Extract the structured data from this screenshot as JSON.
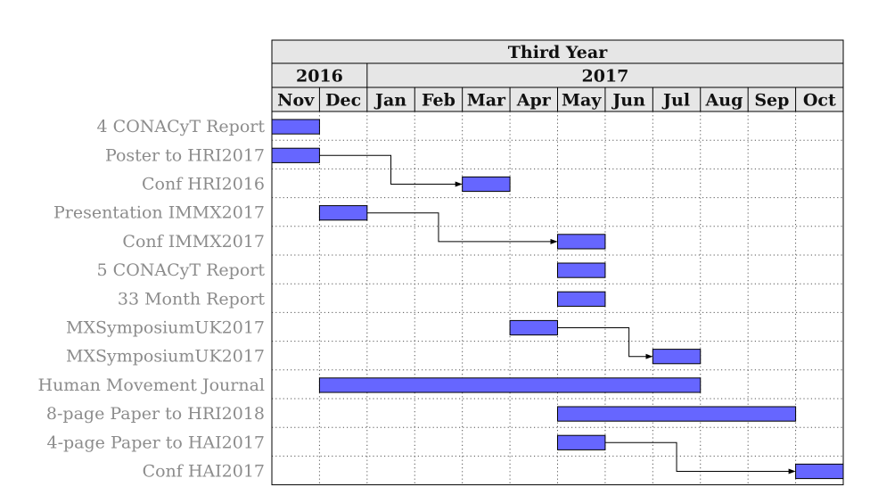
{
  "chart_data": {
    "type": "gantt",
    "title": "Third Year",
    "years": [
      {
        "label": "2016",
        "start_month": 0,
        "span": 2
      },
      {
        "label": "2017",
        "start_month": 2,
        "span": 10
      }
    ],
    "months": [
      "Nov",
      "Dec",
      "Jan",
      "Feb",
      "Mar",
      "Apr",
      "May",
      "Jun",
      "Jul",
      "Aug",
      "Sep",
      "Oct"
    ],
    "tasks": [
      {
        "label": "4 CONACyT Report",
        "start": "Nov",
        "end": "Nov"
      },
      {
        "label": "Poster to HRI2017",
        "start": "Nov",
        "end": "Nov"
      },
      {
        "label": "Conf HRI2016",
        "start": "Mar",
        "end": "Mar"
      },
      {
        "label": "Presentation IMMX2017",
        "start": "Dec",
        "end": "Dec"
      },
      {
        "label": "Conf IMMX2017",
        "start": "May",
        "end": "May"
      },
      {
        "label": "5 CONACyT Report",
        "start": "May",
        "end": "May"
      },
      {
        "label": "33 Month Report",
        "start": "May",
        "end": "May"
      },
      {
        "label": "MXSymposiumUK2017",
        "start": "Apr",
        "end": "Apr"
      },
      {
        "label": "MXSymposiumUK2017",
        "start": "Jul",
        "end": "Jul"
      },
      {
        "label": "Human Movement Journal",
        "start": "Dec",
        "end": "Jul"
      },
      {
        "label": "8-page Paper to HRI2018",
        "start": "May",
        "end": "Sep"
      },
      {
        "label": "4-page Paper to HAI2017",
        "start": "May",
        "end": "May"
      },
      {
        "label": "Conf HAI2017",
        "start": "Oct",
        "end": "Oct"
      }
    ],
    "links": [
      {
        "from": 1,
        "to": 2
      },
      {
        "from": 3,
        "to": 4
      },
      {
        "from": 7,
        "to": 8
      },
      {
        "from": 11,
        "to": 12
      }
    ],
    "colors": {
      "bar": "#6666ff",
      "header_fill": "#e6e6e6",
      "grid": "#555555",
      "label": "#8c8c8c"
    }
  }
}
